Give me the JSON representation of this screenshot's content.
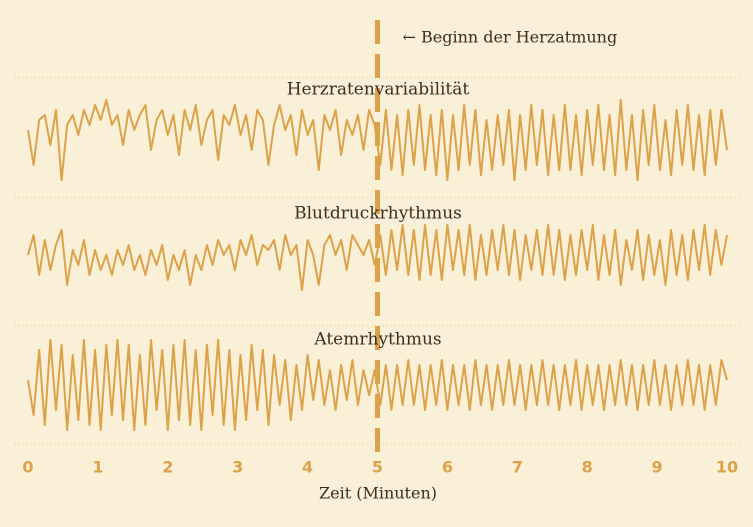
{
  "chart_data": {
    "type": "line",
    "xlabel": "Zeit (Minuten)",
    "xlim": [
      0,
      10
    ],
    "xticks": [
      0,
      1,
      2,
      3,
      4,
      5,
      6,
      7,
      8,
      9,
      10
    ],
    "ylim": [
      -1,
      1
    ],
    "annotation": {
      "text": "← Beginn der Herzatmung",
      "x": 5
    },
    "x": [
      0,
      0.08,
      0.16,
      0.24,
      0.32,
      0.4,
      0.48,
      0.56,
      0.64,
      0.72,
      0.8,
      0.88,
      0.96,
      1.04,
      1.12,
      1.2,
      1.28,
      1.36,
      1.44,
      1.52,
      1.6,
      1.68,
      1.76,
      1.84,
      1.92,
      2,
      2.08,
      2.16,
      2.24,
      2.32,
      2.4,
      2.48,
      2.56,
      2.64,
      2.72,
      2.8,
      2.88,
      2.96,
      3.04,
      3.12,
      3.2,
      3.28,
      3.36,
      3.44,
      3.52,
      3.6,
      3.68,
      3.76,
      3.84,
      3.92,
      4,
      4.08,
      4.16,
      4.24,
      4.32,
      4.4,
      4.48,
      4.56,
      4.64,
      4.72,
      4.8,
      4.88,
      4.96,
      5.04,
      5.12,
      5.2,
      5.28,
      5.36,
      5.44,
      5.52,
      5.6,
      5.68,
      5.76,
      5.84,
      5.92,
      6,
      6.08,
      6.16,
      6.24,
      6.32,
      6.4,
      6.48,
      6.56,
      6.64,
      6.72,
      6.8,
      6.88,
      6.96,
      7.04,
      7.12,
      7.2,
      7.28,
      7.36,
      7.44,
      7.52,
      7.6,
      7.68,
      7.76,
      7.84,
      7.92,
      8,
      8.08,
      8.16,
      8.24,
      8.32,
      8.4,
      8.48,
      8.56,
      8.64,
      8.72,
      8.8,
      8.88,
      8.96,
      9.04,
      9.12,
      9.2,
      9.28,
      9.36,
      9.44,
      9.52,
      9.6,
      9.68,
      9.76,
      9.84,
      9.92,
      10
    ],
    "series": [
      {
        "name": "Herzratenvariabilität",
        "color": "#dba24a",
        "values": [
          0.2,
          -0.5,
          0.4,
          0.5,
          -0.1,
          0.6,
          -0.8,
          0.3,
          0.5,
          0.1,
          0.6,
          0.3,
          0.7,
          0.4,
          0.8,
          0.3,
          0.5,
          -0.1,
          0.6,
          0.2,
          0.5,
          0.7,
          -0.2,
          0.4,
          0.6,
          0.1,
          0.5,
          -0.3,
          0.6,
          0.2,
          0.7,
          -0.1,
          0.4,
          0.6,
          -0.4,
          0.5,
          0.3,
          0.7,
          0.1,
          0.5,
          -0.2,
          0.6,
          0.4,
          -0.5,
          0.3,
          0.7,
          0.2,
          0.5,
          -0.3,
          0.6,
          0.1,
          0.4,
          -0.6,
          0.5,
          0.2,
          0.6,
          -0.3,
          0.4,
          0.1,
          0.5,
          -0.2,
          0.6,
          0.3,
          -0.5,
          0.6,
          -0.6,
          0.5,
          -0.7,
          0.6,
          -0.5,
          0.7,
          -0.6,
          0.5,
          -0.7,
          0.6,
          -0.8,
          0.5,
          -0.6,
          0.7,
          -0.5,
          0.6,
          -0.7,
          0.4,
          -0.6,
          0.5,
          -0.5,
          0.6,
          -0.8,
          0.5,
          -0.6,
          0.7,
          -0.5,
          0.6,
          -0.7,
          0.5,
          -0.6,
          0.7,
          -0.6,
          0.5,
          -0.7,
          0.6,
          -0.5,
          0.7,
          -0.6,
          0.5,
          -0.7,
          0.8,
          -0.6,
          0.5,
          -0.8,
          0.6,
          -0.5,
          0.7,
          -0.6,
          0.4,
          -0.7,
          0.6,
          -0.5,
          0.7,
          -0.6,
          0.5,
          -0.7,
          0.6,
          -0.5,
          0.6,
          -0.2
        ]
      },
      {
        "name": "Blutdruckrhythmus",
        "color": "#dba24a",
        "values": [
          0.1,
          0.5,
          -0.3,
          0.4,
          -0.2,
          0.3,
          0.6,
          -0.5,
          0.2,
          -0.1,
          0.4,
          -0.3,
          0.2,
          -0.2,
          0.1,
          -0.3,
          0.2,
          -0.1,
          0.3,
          -0.2,
          0.1,
          -0.3,
          0.2,
          -0.1,
          0.3,
          -0.4,
          0.1,
          -0.2,
          0.2,
          -0.5,
          0.1,
          -0.2,
          0.3,
          -0.1,
          0.4,
          0.1,
          0.3,
          -0.2,
          0.4,
          0.1,
          0.5,
          -0.1,
          0.3,
          0.2,
          0.4,
          -0.2,
          0.5,
          0.1,
          0.3,
          -0.6,
          0.4,
          0.1,
          -0.5,
          0.3,
          0.5,
          0.1,
          0.4,
          -0.2,
          0.5,
          0.3,
          0.1,
          0.4,
          -0.1,
          0.5,
          -0.3,
          0.6,
          -0.2,
          0.7,
          -0.3,
          0.6,
          -0.4,
          0.7,
          -0.3,
          0.6,
          -0.4,
          0.7,
          -0.2,
          0.6,
          -0.3,
          0.7,
          -0.4,
          0.5,
          -0.3,
          0.6,
          -0.2,
          0.7,
          -0.3,
          0.6,
          -0.4,
          0.5,
          -0.2,
          0.6,
          -0.3,
          0.7,
          -0.3,
          0.6,
          -0.4,
          0.5,
          -0.3,
          0.6,
          -0.2,
          0.7,
          -0.4,
          0.5,
          -0.3,
          0.6,
          -0.5,
          0.4,
          -0.2,
          0.6,
          -0.4,
          0.5,
          -0.3,
          0.4,
          -0.5,
          0.6,
          -0.3,
          0.5,
          -0.4,
          0.6,
          -0.2,
          0.7,
          -0.3,
          0.6,
          -0.1,
          0.5
        ]
      },
      {
        "name": "Atemrhythmus",
        "color": "#dba24a",
        "values": [
          0.1,
          -0.6,
          0.7,
          -0.8,
          0.9,
          -0.5,
          0.8,
          -0.9,
          0.6,
          -0.7,
          0.9,
          -0.8,
          0.7,
          -0.9,
          0.8,
          -0.6,
          0.9,
          -0.7,
          0.8,
          -0.9,
          0.6,
          -0.8,
          0.9,
          -0.5,
          0.7,
          -0.9,
          0.8,
          -0.7,
          0.9,
          -0.8,
          0.7,
          -0.9,
          0.8,
          -0.6,
          0.9,
          -0.8,
          0.7,
          -0.9,
          0.6,
          -0.7,
          0.8,
          -0.5,
          0.7,
          -0.8,
          0.6,
          -0.4,
          0.5,
          -0.7,
          0.4,
          -0.5,
          0.6,
          -0.3,
          0.5,
          -0.4,
          0.3,
          -0.5,
          0.4,
          -0.3,
          0.5,
          -0.4,
          0.3,
          -0.2,
          0.3,
          -0.4,
          0.4,
          -0.5,
          0.4,
          -0.4,
          0.5,
          -0.4,
          0.4,
          -0.5,
          0.4,
          -0.4,
          0.5,
          -0.5,
          0.4,
          -0.4,
          0.4,
          -0.5,
          0.5,
          -0.4,
          0.4,
          -0.5,
          0.4,
          -0.4,
          0.5,
          -0.4,
          0.4,
          -0.5,
          0.4,
          -0.4,
          0.5,
          -0.4,
          0.4,
          -0.5,
          0.4,
          -0.4,
          0.5,
          -0.5,
          0.4,
          -0.4,
          0.4,
          -0.5,
          0.4,
          -0.4,
          0.5,
          -0.4,
          0.4,
          -0.5,
          0.4,
          -0.4,
          0.5,
          -0.4,
          0.4,
          -0.5,
          0.4,
          -0.4,
          0.5,
          -0.4,
          0.4,
          -0.5,
          0.4,
          -0.4,
          0.5,
          0.1
        ]
      }
    ]
  }
}
